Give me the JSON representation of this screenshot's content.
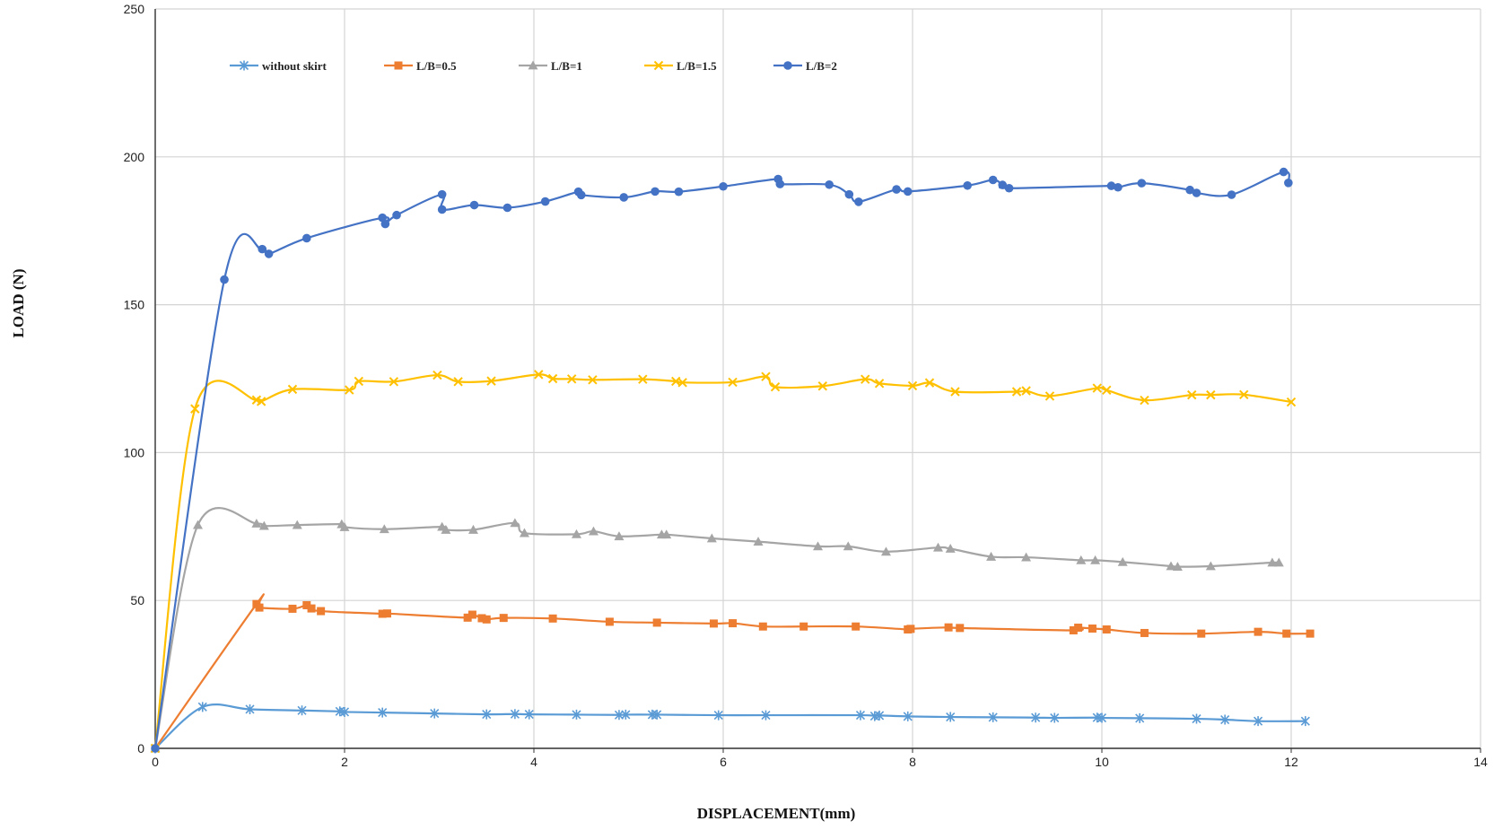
{
  "chart_data": {
    "type": "line",
    "xlabel": "DISPLACEMENT(mm)",
    "ylabel": "LOAD (N)",
    "xlim": [
      0,
      14
    ],
    "ylim": [
      0,
      250
    ],
    "x_ticks": [
      0,
      2,
      4,
      6,
      8,
      10,
      12,
      14
    ],
    "y_ticks": [
      0,
      50,
      100,
      150,
      200,
      250
    ],
    "grid": true,
    "legend_position": "top-left inside",
    "series": [
      {
        "name": "without skirt",
        "color": "#5b9bd5",
        "marker": "asterisk",
        "points": [
          [
            0,
            0
          ],
          [
            0.5,
            14
          ],
          [
            1.0,
            13.2
          ],
          [
            1.55,
            12.8
          ],
          [
            1.95,
            12.5
          ],
          [
            2.0,
            12.3
          ],
          [
            2.4,
            12.1
          ],
          [
            2.95,
            11.8
          ],
          [
            3.5,
            11.5
          ],
          [
            3.8,
            11.6
          ],
          [
            3.95,
            11.5
          ],
          [
            4.45,
            11.4
          ],
          [
            4.9,
            11.3
          ],
          [
            4.97,
            11.4
          ],
          [
            5.25,
            11.4
          ],
          [
            5.3,
            11.4
          ],
          [
            5.95,
            11.2
          ],
          [
            6.45,
            11.2
          ],
          [
            7.45,
            11.2
          ],
          [
            7.6,
            10.9
          ],
          [
            7.65,
            11.1
          ],
          [
            7.95,
            10.8
          ],
          [
            8.4,
            10.6
          ],
          [
            8.85,
            10.5
          ],
          [
            9.3,
            10.4
          ],
          [
            9.5,
            10.3
          ],
          [
            9.95,
            10.4
          ],
          [
            10.0,
            10.3
          ],
          [
            10.4,
            10.2
          ],
          [
            11.0,
            10.0
          ],
          [
            11.3,
            9.7
          ],
          [
            11.65,
            9.2
          ],
          [
            12.15,
            9.2
          ]
        ]
      },
      {
        "name": "L/B=0.5",
        "color": "#ed7d31",
        "marker": "square",
        "points": [
          [
            0,
            0
          ],
          [
            1.07,
            48.8
          ],
          [
            1.1,
            47.6
          ],
          [
            1.45,
            47.2
          ],
          [
            1.6,
            48.4
          ],
          [
            1.65,
            47.3
          ],
          [
            1.75,
            46.4
          ],
          [
            2.4,
            45.5
          ],
          [
            2.45,
            45.6
          ],
          [
            3.3,
            44.2
          ],
          [
            3.35,
            45.2
          ],
          [
            3.45,
            44
          ],
          [
            3.5,
            43.6
          ],
          [
            3.68,
            44.1
          ],
          [
            4.2,
            43.9
          ],
          [
            4.8,
            42.8
          ],
          [
            5.3,
            42.5
          ],
          [
            5.9,
            42.2
          ],
          [
            6.1,
            42.3
          ],
          [
            6.42,
            41.2
          ],
          [
            6.85,
            41.2
          ],
          [
            7.4,
            41.2
          ],
          [
            7.95,
            40.2
          ],
          [
            7.98,
            40.4
          ],
          [
            8.38,
            40.9
          ],
          [
            8.5,
            40.7
          ],
          [
            9.7,
            39.9
          ],
          [
            9.75,
            40.8
          ],
          [
            9.9,
            40.5
          ],
          [
            10.05,
            40.2
          ],
          [
            10.45,
            39
          ],
          [
            11.05,
            38.8
          ],
          [
            11.65,
            39.4
          ],
          [
            11.95,
            38.8
          ],
          [
            12.2,
            38.8
          ]
        ]
      },
      {
        "name": "L/B=1",
        "color": "#a5a5a5",
        "marker": "triangle",
        "points": [
          [
            0,
            0
          ],
          [
            0.45,
            75.5
          ],
          [
            1.07,
            76
          ],
          [
            1.15,
            75.2
          ],
          [
            1.5,
            75.5
          ],
          [
            1.97,
            75.8
          ],
          [
            2.0,
            74.8
          ],
          [
            2.42,
            74.1
          ],
          [
            3.03,
            74.9
          ],
          [
            3.07,
            73.9
          ],
          [
            3.36,
            73.9
          ],
          [
            3.8,
            76.2
          ],
          [
            3.9,
            72.8
          ],
          [
            4.45,
            72.4
          ],
          [
            4.63,
            73.4
          ],
          [
            4.9,
            71.7
          ],
          [
            5.35,
            72.3
          ],
          [
            5.4,
            72.3
          ],
          [
            5.88,
            71
          ],
          [
            6.37,
            69.9
          ],
          [
            7.0,
            68.3
          ],
          [
            7.32,
            68.3
          ],
          [
            7.72,
            66.5
          ],
          [
            8.27,
            67.9
          ],
          [
            8.4,
            67.5
          ],
          [
            8.83,
            64.8
          ],
          [
            9.2,
            64.6
          ],
          [
            9.78,
            63.6
          ],
          [
            9.93,
            63.6
          ],
          [
            10.22,
            63
          ],
          [
            10.73,
            61.6
          ],
          [
            10.8,
            61.4
          ],
          [
            11.15,
            61.6
          ],
          [
            11.8,
            62.8
          ],
          [
            11.87,
            62.8
          ]
        ]
      },
      {
        "name": "L/B=1.5",
        "color": "#ffc000",
        "marker": "cross",
        "points": [
          [
            0,
            0
          ],
          [
            0.42,
            114.8
          ],
          [
            1.07,
            117.8
          ],
          [
            1.12,
            117.3
          ],
          [
            1.45,
            121.4
          ],
          [
            2.05,
            121.2
          ],
          [
            2.15,
            124.1
          ],
          [
            2.52,
            124
          ],
          [
            2.98,
            126.2
          ],
          [
            3.2,
            124
          ],
          [
            3.55,
            124.2
          ],
          [
            4.05,
            126.4
          ],
          [
            4.2,
            125
          ],
          [
            4.4,
            124.9
          ],
          [
            4.62,
            124.6
          ],
          [
            5.15,
            124.8
          ],
          [
            5.5,
            124.1
          ],
          [
            5.57,
            123.7
          ],
          [
            6.1,
            123.8
          ],
          [
            6.45,
            125.7
          ],
          [
            6.55,
            122.2
          ],
          [
            7.05,
            122.5
          ],
          [
            7.5,
            124.8
          ],
          [
            7.65,
            123.4
          ],
          [
            8.0,
            122.6
          ],
          [
            8.18,
            123.6
          ],
          [
            8.45,
            120.6
          ],
          [
            9.1,
            120.6
          ],
          [
            9.2,
            120.9
          ],
          [
            9.45,
            119.1
          ],
          [
            9.95,
            121.8
          ],
          [
            10.05,
            121.1
          ],
          [
            10.45,
            117.7
          ],
          [
            10.95,
            119.5
          ],
          [
            11.15,
            119.5
          ],
          [
            11.5,
            119.6
          ],
          [
            12.0,
            117.1
          ]
        ]
      },
      {
        "name": "L/B=2",
        "color": "#4472c4",
        "marker": "circle",
        "points": [
          [
            0,
            0
          ],
          [
            0.73,
            158.5
          ],
          [
            1.13,
            168.8
          ],
          [
            1.2,
            167.2
          ],
          [
            1.6,
            172.5
          ],
          [
            2.4,
            179.4
          ],
          [
            2.43,
            177.3
          ],
          [
            2.55,
            180.3
          ],
          [
            3.03,
            187.3
          ],
          [
            3.03,
            182.2
          ],
          [
            3.37,
            183.7
          ],
          [
            3.72,
            182.8
          ],
          [
            4.12,
            184.9
          ],
          [
            4.47,
            188.2
          ],
          [
            4.5,
            187.1
          ],
          [
            4.95,
            186.3
          ],
          [
            5.28,
            188.3
          ],
          [
            5.53,
            188.2
          ],
          [
            6.0,
            190
          ],
          [
            6.58,
            192.5
          ],
          [
            6.6,
            190.8
          ],
          [
            7.12,
            190.6
          ],
          [
            7.33,
            187.3
          ],
          [
            7.43,
            184.8
          ],
          [
            7.83,
            189
          ],
          [
            7.95,
            188.3
          ],
          [
            8.58,
            190.3
          ],
          [
            8.85,
            192.2
          ],
          [
            8.95,
            190.5
          ],
          [
            9.02,
            189.4
          ],
          [
            10.1,
            190.2
          ],
          [
            10.17,
            189.7
          ],
          [
            10.42,
            191.1
          ],
          [
            10.93,
            188.8
          ],
          [
            11.0,
            187.8
          ],
          [
            11.37,
            187.2
          ],
          [
            11.92,
            194.9
          ],
          [
            11.97,
            191.2
          ]
        ]
      }
    ]
  }
}
